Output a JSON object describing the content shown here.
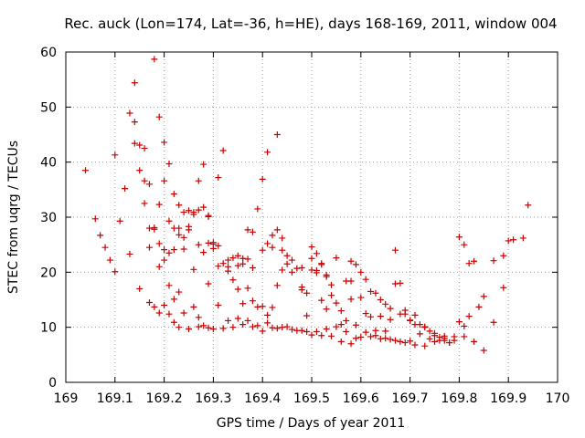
{
  "chart_data": {
    "type": "scatter",
    "title": "Rec. auck (Lon=174, Lat=-36, h=HE), days 168-169, 2011, window 004",
    "xlabel": "GPS time / Days of year 2011",
    "ylabel": "STEC from uqrg / TECUs",
    "xlim": [
      169,
      170
    ],
    "ylim": [
      0,
      60
    ],
    "xticks": [
      169,
      169.1,
      169.2,
      169.3,
      169.4,
      169.5,
      169.6,
      169.7,
      169.8,
      169.9,
      170
    ],
    "xtick_labels": [
      "169",
      "169.1",
      "169.2",
      "169.3",
      "169.4",
      "169.5",
      "169.6",
      "169.7",
      "169.8",
      "169.9",
      "170"
    ],
    "yticks": [
      0,
      10,
      20,
      30,
      40,
      50,
      60
    ],
    "ytick_labels": [
      "0",
      "10",
      "20",
      "30",
      "40",
      "50",
      "60"
    ],
    "grid": true,
    "marker": "plus",
    "color": "#cc0000",
    "x": [
      169.04,
      169.06,
      169.07,
      169.08,
      169.09,
      169.1,
      169.11,
      169.13,
      169.14,
      169.15,
      169.16,
      169.17,
      169.18,
      169.19,
      169.2,
      169.21,
      169.22,
      169.23,
      169.24,
      169.25,
      169.26,
      169.27,
      169.28,
      169.29,
      169.3,
      169.31,
      169.32,
      169.33,
      169.35,
      169.36,
      169.37,
      169.38,
      169.39,
      169.4,
      169.41,
      169.42,
      169.43,
      169.44,
      169.45,
      169.46,
      169.48,
      169.49,
      169.5,
      169.51,
      169.52,
      169.53,
      169.54,
      169.55,
      169.56,
      169.57,
      169.58,
      169.59,
      169.6,
      169.61,
      169.62,
      169.63,
      169.64,
      169.65,
      169.66,
      169.67,
      169.68,
      169.69,
      169.7,
      169.71,
      169.72,
      169.73,
      169.74,
      169.75,
      169.76,
      169.77,
      169.78,
      169.8,
      169.81,
      169.82,
      169.83,
      169.85,
      169.87,
      169.89,
      169.91,
      169.93,
      169.94,
      169.1,
      169.12,
      169.14,
      169.15,
      169.16,
      169.17,
      169.18,
      169.19,
      169.2,
      169.21,
      169.22,
      169.23,
      169.24,
      169.25,
      169.26,
      169.27,
      169.28,
      169.29,
      169.3,
      169.31,
      169.32,
      169.33,
      169.34,
      169.35,
      169.36,
      169.37,
      169.38,
      169.4,
      169.41,
      169.42,
      169.43,
      169.44,
      169.46,
      169.48,
      169.5,
      169.51,
      169.52,
      169.53,
      169.55,
      169.57,
      169.58,
      169.6,
      169.62,
      169.64,
      169.66,
      169.68,
      169.7,
      169.72,
      169.74,
      169.76,
      169.78,
      169.79,
      169.81,
      169.83,
      169.85,
      169.87,
      169.89,
      169.9,
      169.13,
      169.14,
      169.16,
      169.17,
      169.18,
      169.19,
      169.2,
      169.21,
      169.22,
      169.23,
      169.24,
      169.25,
      169.26,
      169.27,
      169.28,
      169.29,
      169.3,
      169.31,
      169.33,
      169.34,
      169.35,
      169.36,
      169.37,
      169.38,
      169.39,
      169.4,
      169.41,
      169.42,
      169.43,
      169.44,
      169.45,
      169.47,
      169.48,
      169.49,
      169.5,
      169.51,
      169.52,
      169.53,
      169.54,
      169.56,
      169.58,
      169.59,
      169.61,
      169.63,
      169.65,
      169.67,
      169.69,
      169.71,
      169.73,
      169.75,
      169.77,
      169.8,
      169.82,
      169.84,
      169.15,
      169.17,
      169.19,
      169.2,
      169.21,
      169.22,
      169.23,
      169.24,
      169.26,
      169.27,
      169.28,
      169.29,
      169.31,
      169.33,
      169.35,
      169.37,
      169.39,
      169.41,
      169.43,
      169.45,
      169.47,
      169.49,
      169.51,
      169.53,
      169.55,
      169.57,
      169.59,
      169.61,
      169.63,
      169.65,
      169.67,
      169.69,
      169.71,
      169.73,
      169.75,
      169.77,
      169.79,
      169.81,
      169.18,
      169.19,
      169.2,
      169.21,
      169.22,
      169.23,
      169.25,
      169.27,
      169.29,
      169.3,
      169.32,
      169.34,
      169.36,
      169.38,
      169.4,
      169.42,
      169.44,
      169.46,
      169.48,
      169.5,
      169.52,
      169.54,
      169.56,
      169.58,
      169.6,
      169.62,
      169.64,
      169.66,
      169.68,
      169.7
    ],
    "y": [
      38.5,
      29.7,
      26.7,
      24.5,
      22.2,
      20.1,
      29.3,
      23.3,
      47.3,
      38.5,
      42.5,
      36.0,
      58.7,
      48.2,
      43.6,
      39.7,
      34.2,
      32.2,
      30.9,
      31.2,
      30.5,
      36.6,
      39.6,
      25.3,
      24.3,
      37.2,
      42.1,
      22.2,
      23.0,
      21.5,
      27.7,
      27.3,
      31.5,
      36.9,
      41.8,
      24.5,
      45.0,
      26.2,
      21.5,
      20.0,
      17.3,
      16.2,
      22.5,
      23.4,
      21.6,
      19.5,
      17.7,
      14.4,
      13.0,
      11.2,
      22.0,
      21.4,
      20.0,
      18.7,
      16.5,
      16.2,
      15.0,
      14.2,
      13.4,
      24.0,
      18.0,
      12.4,
      11.2,
      12.2,
      10.5,
      10.0,
      9.3,
      8.5,
      8.2,
      7.6,
      7.2,
      26.4,
      25.0,
      21.6,
      22.0,
      15.6,
      22.1,
      23.0,
      25.9,
      26.2,
      32.2,
      41.3,
      35.2,
      54.4,
      43.1,
      36.6,
      24.5,
      28.1,
      32.3,
      36.6,
      23.5,
      28.0,
      26.8,
      26.3,
      28.3,
      30.9,
      31.3,
      23.6,
      30.3,
      25.4,
      21.1,
      21.6,
      20.2,
      22.6,
      21.2,
      22.5,
      22.4,
      20.8,
      24.0,
      25.2,
      26.7,
      27.7,
      24.0,
      22.2,
      20.8,
      24.6,
      20.3,
      21.4,
      19.2,
      22.6,
      18.4,
      18.4,
      15.4,
      11.9,
      12.0,
      11.4,
      12.4,
      11.3,
      8.8,
      7.9,
      7.6,
      7.2,
      7.6,
      8.3,
      7.4,
      5.8,
      10.9,
      17.2,
      25.7,
      48.9,
      43.4,
      32.5,
      28.0,
      27.8,
      25.2,
      24.1,
      29.3,
      24.1,
      28.0,
      24.2,
      27.7,
      20.5,
      25.0,
      31.8,
      30.1,
      25.1,
      24.8,
      21.0,
      18.6,
      16.9,
      14.3,
      17.1,
      14.8,
      13.7,
      13.8,
      12.2,
      13.6,
      17.6,
      20.4,
      23.0,
      20.7,
      16.8,
      12.1,
      20.4,
      19.9,
      14.9,
      13.3,
      15.8,
      10.5,
      15.1,
      10.4,
      12.5,
      9.4,
      9.3,
      17.9,
      13.1,
      10.5,
      10.1,
      8.9,
      8.4,
      11.0,
      12.0,
      13.7,
      17.0,
      14.5,
      21.0,
      22.2,
      17.6,
      15.1,
      16.4,
      12.6,
      13.7,
      11.8,
      10.3,
      17.9,
      14.0,
      11.2,
      11.6,
      11.2,
      10.3,
      10.8,
      9.8,
      10.1,
      9.4,
      9.2,
      9.2,
      9.7,
      10.1,
      9.2,
      8.0,
      9.1,
      8.5,
      8.0,
      7.6,
      7.2,
      6.8,
      6.6,
      7.4,
      8.0,
      8.3,
      10.2,
      13.7,
      12.6,
      14.0,
      12.4,
      10.9,
      10.0,
      9.7,
      10.1,
      9.9,
      9.7,
      9.8,
      10.0,
      10.5,
      10.1,
      9.3,
      9.9,
      10.0,
      9.6,
      9.4,
      8.6,
      8.5,
      8.4,
      7.4,
      7.0,
      8.2,
      8.3,
      7.9,
      7.8,
      7.4,
      7.5
    ]
  }
}
